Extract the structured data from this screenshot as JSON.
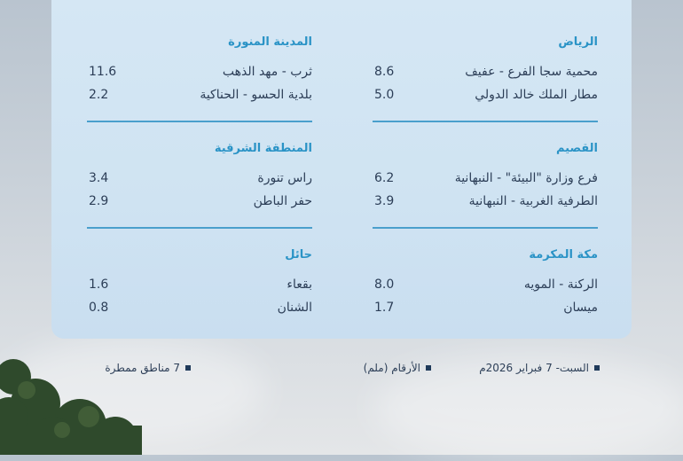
{
  "regions_right": [
    {
      "title": "الرياض",
      "stations": [
        {
          "name": "محمية سجا الفرع - عفيف",
          "value": "8.6"
        },
        {
          "name": "مطار الملك خالد الدولي",
          "value": "5.0"
        }
      ]
    },
    {
      "title": "القصيم",
      "stations": [
        {
          "name": "فرع وزارة \"البيئة\" - النبهانية",
          "value": "6.2"
        },
        {
          "name": "الطرفية الغربية - النبهانية",
          "value": "3.9"
        }
      ]
    },
    {
      "title": "مكة المكرمة",
      "stations": [
        {
          "name": "الركنة - المويه",
          "value": "8.0"
        },
        {
          "name": "ميسان",
          "value": "1.7"
        }
      ]
    }
  ],
  "regions_left": [
    {
      "title": "المدينة المنورة",
      "stations": [
        {
          "name": "ثرب - مهد الذهب",
          "value": "11.6"
        },
        {
          "name": "بلدية الحسو - الحناكية",
          "value": "2.2"
        }
      ]
    },
    {
      "title": "المنطقة الشرقية",
      "stations": [
        {
          "name": "راس تنورة",
          "value": "3.4"
        },
        {
          "name": "حفر الباطن",
          "value": "2.9"
        }
      ]
    },
    {
      "title": "حائل",
      "stations": [
        {
          "name": "بقعاء",
          "value": "1.6"
        },
        {
          "name": "الشنان",
          "value": "0.8"
        }
      ]
    }
  ],
  "footer": {
    "date": "السبت- 7 فبراير 2026م",
    "units": "الأرقام (ملم)",
    "count": "7 مناطق ممطرة"
  },
  "colors": {
    "heading": "#2a93c6",
    "divider": "#4a9fcc",
    "text": "#2c3e57",
    "panel": "#d2e5f3"
  }
}
